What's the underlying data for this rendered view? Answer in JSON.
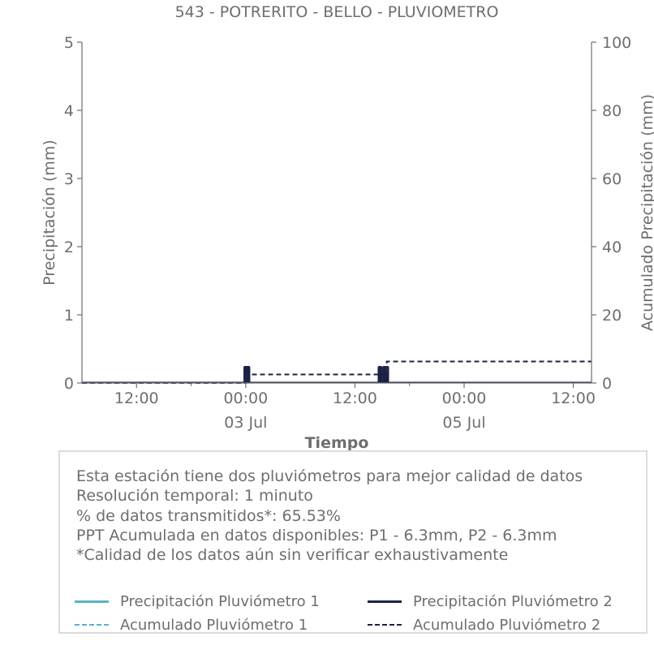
{
  "chart_data": {
    "type": "bar",
    "title": "543 - POTRERITO - BELLO - PLUVIOMETRO",
    "xlabel": "Tiempo",
    "ylabel_left": "Precipitación (mm)",
    "ylabel_right": "Acumulado Precipitación (mm)",
    "ylim_left": [
      0,
      5
    ],
    "ylim_right": [
      0,
      100
    ],
    "yticks_left": [
      "0",
      "1",
      "2",
      "3",
      "4",
      "5"
    ],
    "yticks_right": [
      "0",
      "20",
      "40",
      "60",
      "80",
      "100"
    ],
    "xlim_hours": [
      0,
      56
    ],
    "xticks": [
      {
        "hour": 6,
        "label": "12:00",
        "date": ""
      },
      {
        "hour": 18,
        "label": "00:00",
        "date": "03 Jul"
      },
      {
        "hour": 30,
        "label": "12:00",
        "date": ""
      },
      {
        "hour": 42,
        "label": "00:00",
        "date": "05 Jul"
      },
      {
        "hour": 54,
        "label": "12:00",
        "date": ""
      }
    ],
    "x_start": "2 Jul 06:00",
    "x_end": "5 Jul 14:00",
    "grid": false,
    "series": [
      {
        "name": "Precipitación Pluviómetro 1",
        "kind": "bar",
        "color": "#56b4c9",
        "points": [
          {
            "t": "03 Jul 00:00",
            "hour": 18.0,
            "value": 0.25
          },
          {
            "t": "03 Jul 14:45",
            "hour": 32.75,
            "value": 0.25
          },
          {
            "t": "03 Jul 15:15",
            "hour": 33.25,
            "value": 0.25
          },
          {
            "t": "03 Jul 15:30",
            "hour": 33.5,
            "value": 0.25
          }
        ]
      },
      {
        "name": "Precipitación Pluviómetro 2",
        "kind": "bar",
        "color": "#1c2245",
        "points": [
          {
            "t": "03 Jul 00:00",
            "hour": 18.0,
            "value": 0.25
          },
          {
            "t": "03 Jul 00:15",
            "hour": 18.25,
            "value": 0.25
          },
          {
            "t": "03 Jul 14:45",
            "hour": 32.75,
            "value": 0.25
          },
          {
            "t": "03 Jul 15:15",
            "hour": 33.25,
            "value": 0.25
          },
          {
            "t": "03 Jul 15:30",
            "hour": 33.5,
            "value": 0.25
          }
        ]
      },
      {
        "name": "Acumulado Pluviómetro 1",
        "kind": "line",
        "dashed": true,
        "color": "#56b4c9",
        "points": [
          [
            0,
            0
          ],
          [
            18,
            0
          ],
          [
            18,
            2.5
          ],
          [
            33.5,
            2.5
          ],
          [
            33.5,
            6.3
          ],
          [
            56,
            6.3
          ]
        ]
      },
      {
        "name": "Acumulado Pluviómetro 2",
        "kind": "line",
        "dashed": true,
        "color": "#1c2245",
        "points": [
          [
            0,
            0
          ],
          [
            18,
            0
          ],
          [
            18,
            2.5
          ],
          [
            33.5,
            2.5
          ],
          [
            33.5,
            6.3
          ],
          [
            56,
            6.3
          ]
        ]
      }
    ]
  },
  "info": {
    "line1": "Esta estación tiene dos pluviómetros para mejor calidad de datos",
    "line2": "Resolución temporal: 1 minuto",
    "line3": "% de datos transmitidos*: 65.53%",
    "line4": "PPT Acumulada en datos disponibles: P1 - 6.3mm, P2 - 6.3mm",
    "line5": "*Calidad de los datos aún sin verificar exhaustivamente"
  },
  "legend": [
    {
      "label": "Precipitación Pluviómetro 1",
      "color": "#56b4c9",
      "style": "solid"
    },
    {
      "label": "Precipitación Pluviómetro 2",
      "color": "#1c2245",
      "style": "solid"
    },
    {
      "label": "Acumulado Pluviómetro 1",
      "color": "#56b4c9",
      "style": "dashed"
    },
    {
      "label": "Acumulado Pluviómetro 2",
      "color": "#1c2245",
      "style": "dashed"
    }
  ],
  "colors": {
    "axis": "#6e6e6e",
    "text": "#6e6e6e"
  }
}
